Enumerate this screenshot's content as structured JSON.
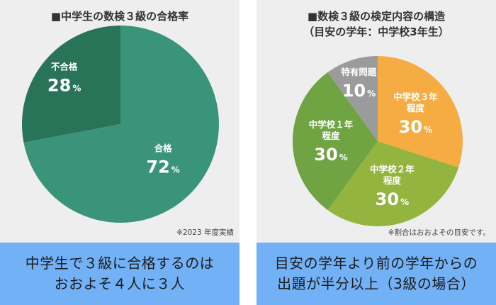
{
  "left_panel": {
    "title": "■中学生の数検３級の合格率",
    "note": "※2023 年度実績",
    "caption_lines": [
      "中学生で３級に合格するのは",
      "おおよそ４人に３人"
    ]
  },
  "right_panel": {
    "title_line1": "■数検３級の検定内容の構造",
    "title_line2": "（目安の学年：中学校3年生）",
    "note": "※割合はおおよその目安です。",
    "caption_lines": [
      "目安の学年より前の学年からの",
      "出題が半分以上（3級の場合）"
    ]
  },
  "colors": {
    "pass": "#3a9479",
    "fail": "#297359",
    "grade3": "#f5ad43",
    "grade2": "#93b53f",
    "grade1": "#70a342",
    "special": "#9b9b9b",
    "panel_bg": "#eeeeee",
    "caption_bg": "#72b1f5"
  },
  "chart_data": [
    {
      "type": "pie",
      "title": "■中学生の数検３級の合格率",
      "unit": "%",
      "slices": [
        {
          "label": "合格",
          "value": 72,
          "display": "72",
          "color": "#3a9479"
        },
        {
          "label": "不合格",
          "value": 28,
          "display": "28",
          "color": "#297359"
        }
      ]
    },
    {
      "type": "pie",
      "title": "■数検３級の検定内容の構造",
      "unit": "%",
      "slices": [
        {
          "label": [
            "中学校３年",
            "程度"
          ],
          "value": 30,
          "display": "30",
          "color": "#f5ad43"
        },
        {
          "label": [
            "中学校２年",
            "程度"
          ],
          "value": 30,
          "display": "30",
          "color": "#93b53f"
        },
        {
          "label": [
            "中学校１年",
            "程度"
          ],
          "value": 30,
          "display": "30",
          "color": "#70a342"
        },
        {
          "label": [
            "特有問題"
          ],
          "value": 10,
          "display": "10",
          "color": "#9b9b9b"
        }
      ]
    }
  ]
}
